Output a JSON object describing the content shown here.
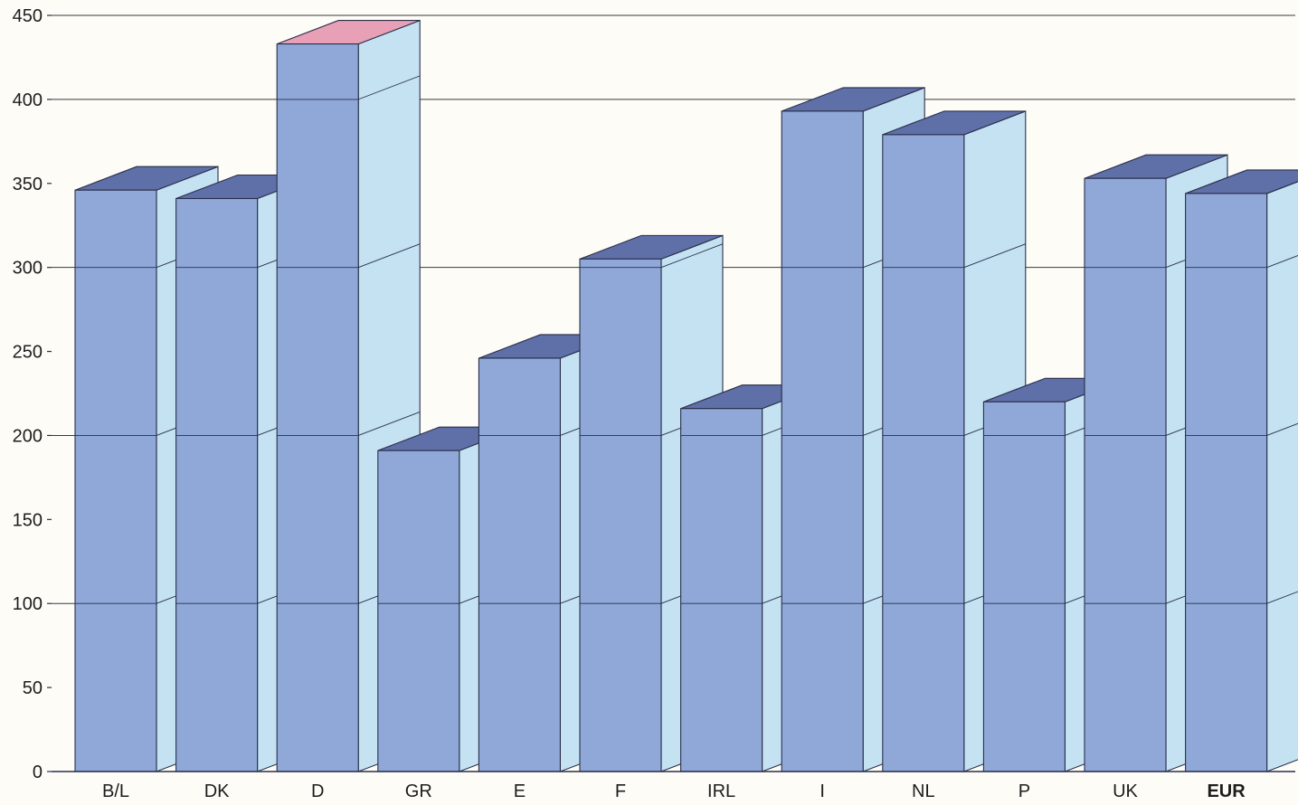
{
  "chart_data": {
    "type": "bar",
    "style": "3d-bar",
    "categories": [
      "B/L",
      "DK",
      "D",
      "GR",
      "E",
      "F",
      "IRL",
      "I",
      "NL",
      "P",
      "UK",
      "EUR"
    ],
    "emphasized_category": "EUR",
    "series": [
      {
        "values": [
          346,
          341,
          433,
          191,
          246,
          305,
          216,
          393,
          379,
          220,
          353,
          344
        ]
      }
    ],
    "top_face_colors": [
      "#5f6fa8",
      "#5f6fa8",
      "#e8a0b6",
      "#5f6fa8",
      "#5f6fa8",
      "#5f6fa8",
      "#5f6fa8",
      "#5f6fa8",
      "#5f6fa8",
      "#5f6fa8",
      "#5f6fa8",
      "#5f6fa8"
    ],
    "yticks": [
      0,
      50,
      100,
      150,
      200,
      250,
      300,
      350,
      400,
      450
    ],
    "ylim": [
      0,
      450
    ],
    "gridlines_at": [
      100,
      200,
      300,
      400,
      450
    ],
    "grid": true,
    "legend": "none",
    "colors": {
      "front": "#8fa8d8",
      "side": "#c4e2f2",
      "top": "#5f6fa8",
      "top_highlight": "#e8a0b6",
      "outline": "#2a2f4a",
      "grid": "#3a3a3a",
      "background": "#fdfcf7"
    }
  }
}
